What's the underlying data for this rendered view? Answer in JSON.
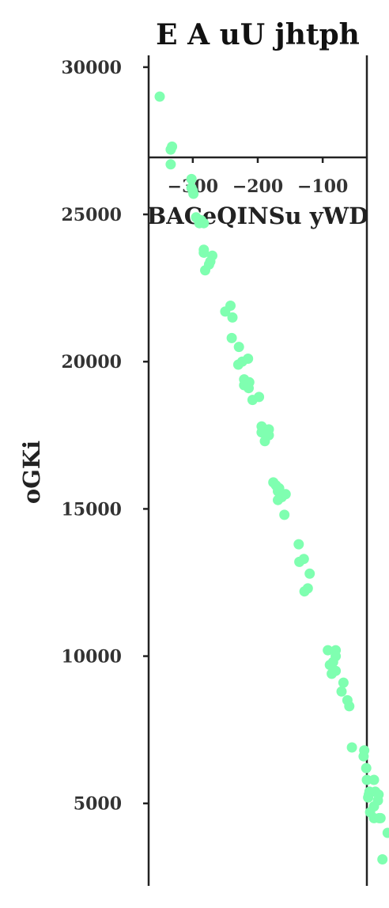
{
  "chart_data": {
    "type": "scatter",
    "title": "E A  uU  jhtph",
    "xlabel": "BACeQINSu yWD",
    "ylabel": "oGKi",
    "x_ticks": [
      -300,
      -200,
      -100
    ],
    "x_tick_labels": [
      "−300",
      "−200",
      "−100"
    ],
    "y_ticks": [
      5000,
      10000,
      15000,
      20000,
      25000,
      30000
    ],
    "y_tick_labels": [
      "5000",
      "10000",
      "15000",
      "20000",
      "25000",
      "30000"
    ],
    "xlim": [
      -368,
      -32
    ],
    "ylim": [
      2200,
      30400
    ],
    "grid": false,
    "marker_color": "#7fffb0",
    "series": [
      {
        "points": [
          [
            -351,
            29000
          ],
          [
            -332,
            27300
          ],
          [
            -334,
            27200
          ],
          [
            -334,
            26700
          ],
          [
            -302,
            26200
          ],
          [
            -302,
            25900
          ],
          [
            -299,
            25700
          ],
          [
            -300,
            25800
          ],
          [
            -295,
            24900
          ],
          [
            -290,
            24700
          ],
          [
            -287,
            24800
          ],
          [
            -283,
            24700
          ],
          [
            -283,
            23800
          ],
          [
            -283,
            23700
          ],
          [
            -270,
            23600
          ],
          [
            -273,
            23400
          ],
          [
            -275,
            23300
          ],
          [
            -281,
            23100
          ],
          [
            -250,
            21700
          ],
          [
            -242,
            21900
          ],
          [
            -239,
            21500
          ],
          [
            -240,
            20800
          ],
          [
            -229,
            20500
          ],
          [
            -224,
            20000
          ],
          [
            -215,
            20100
          ],
          [
            -230,
            19900
          ],
          [
            -221,
            19400
          ],
          [
            -221,
            19200
          ],
          [
            -213,
            19300
          ],
          [
            -214,
            19100
          ],
          [
            -208,
            18700
          ],
          [
            -198,
            18800
          ],
          [
            -194,
            17800
          ],
          [
            -183,
            17700
          ],
          [
            -183,
            17500
          ],
          [
            -194,
            17600
          ],
          [
            -187,
            17500
          ],
          [
            -189,
            17300
          ],
          [
            -176,
            15900
          ],
          [
            -172,
            15800
          ],
          [
            -169,
            15600
          ],
          [
            -167,
            15700
          ],
          [
            -157,
            15500
          ],
          [
            -163,
            15400
          ],
          [
            -169,
            15300
          ],
          [
            -159,
            14800
          ],
          [
            -137,
            13800
          ],
          [
            -136,
            13200
          ],
          [
            -129,
            13300
          ],
          [
            -120,
            12800
          ],
          [
            -123,
            12300
          ],
          [
            -128,
            12200
          ],
          [
            -92,
            10200
          ],
          [
            -80,
            10200
          ],
          [
            -80,
            10000
          ],
          [
            -84,
            9800
          ],
          [
            -80,
            9500
          ],
          [
            -86,
            9400
          ],
          [
            -89,
            9700
          ],
          [
            -68,
            9100
          ],
          [
            -71,
            8800
          ],
          [
            -62,
            8500
          ],
          [
            -59,
            8300
          ],
          [
            -55,
            6900
          ],
          [
            -36,
            6800
          ],
          [
            -37,
            6600
          ],
          [
            -33,
            6200
          ],
          [
            -32,
            5800
          ],
          [
            -21,
            5800
          ],
          [
            -19,
            5400
          ],
          [
            -28,
            5400
          ],
          [
            -29,
            5300
          ],
          [
            -30,
            5200
          ],
          [
            -21,
            4900
          ],
          [
            -14,
            5300
          ],
          [
            -15,
            5100
          ],
          [
            -27,
            4700
          ],
          [
            -21,
            4500
          ],
          [
            -13,
            4500
          ],
          [
            -11,
            4500
          ],
          [
            0,
            4000
          ],
          [
            -8,
            3100
          ]
        ]
      }
    ]
  }
}
